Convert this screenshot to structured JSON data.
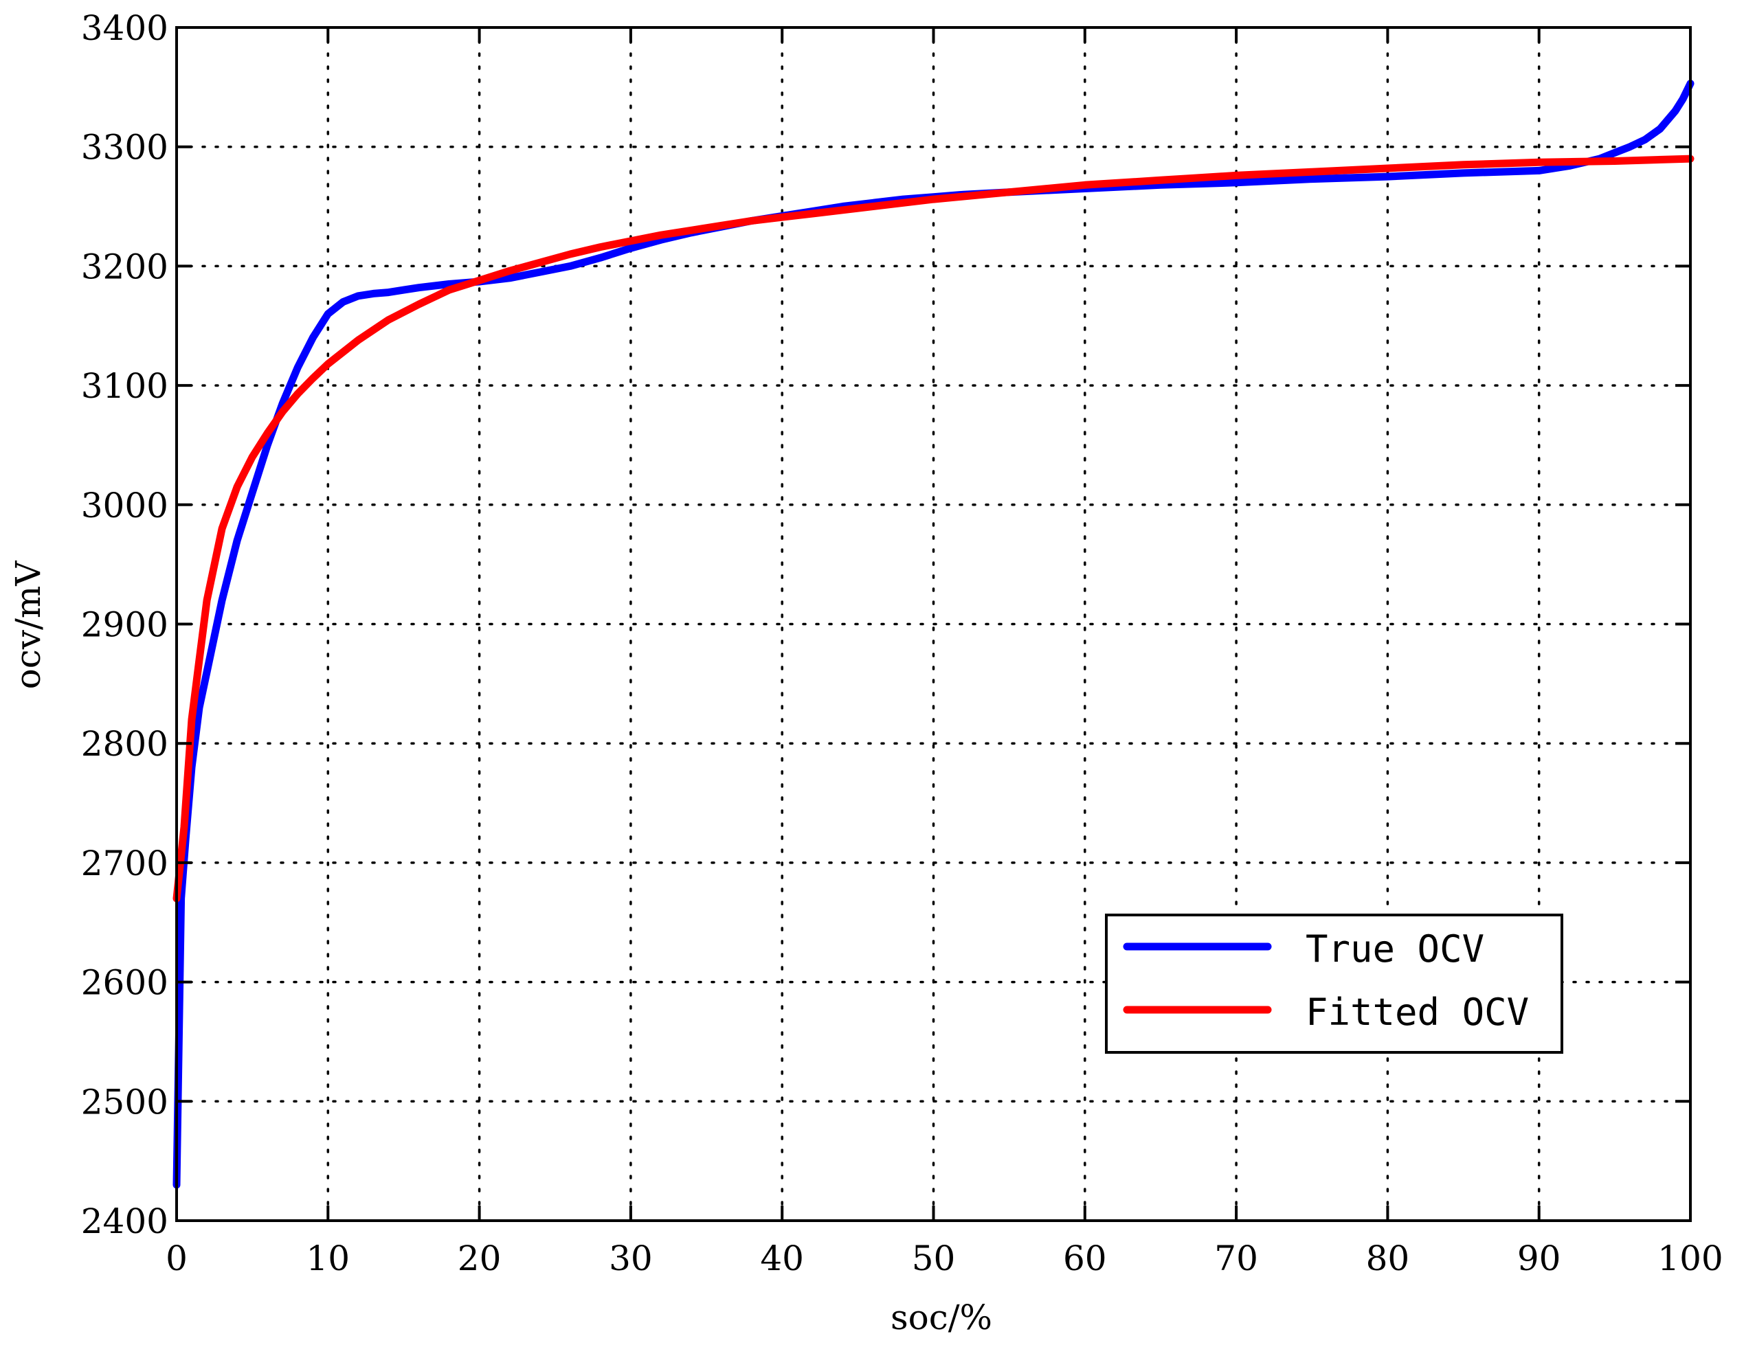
{
  "chart_data": {
    "type": "line",
    "title": "",
    "xlabel": "soc/%",
    "ylabel": "ocv/mV",
    "xlim": [
      0,
      100
    ],
    "ylim": [
      2400,
      3400
    ],
    "xticks": [
      0,
      10,
      20,
      30,
      40,
      50,
      60,
      70,
      80,
      90,
      100
    ],
    "yticks": [
      2400,
      2500,
      2600,
      2700,
      2800,
      2900,
      3000,
      3100,
      3200,
      3300,
      3400
    ],
    "grid": true,
    "legend_position": "lower-right",
    "series": [
      {
        "name": "True OCV",
        "color": "#0000ff",
        "x": [
          0,
          0.3,
          0.6,
          1,
          1.5,
          2,
          3,
          4,
          5,
          6,
          7,
          8,
          9,
          10,
          11,
          12,
          13,
          14,
          15,
          16,
          18,
          20,
          22,
          24,
          26,
          28,
          30,
          32,
          34,
          36,
          38,
          40,
          42,
          44,
          46,
          48,
          50,
          52,
          55,
          60,
          65,
          70,
          75,
          80,
          85,
          90,
          92,
          94,
          95,
          96,
          97,
          98,
          99,
          99.5,
          100
        ],
        "y": [
          2430,
          2670,
          2720,
          2780,
          2830,
          2860,
          2920,
          2970,
          3010,
          3050,
          3085,
          3115,
          3140,
          3160,
          3170,
          3175,
          3177,
          3178,
          3180,
          3182,
          3185,
          3187,
          3190,
          3195,
          3200,
          3207,
          3215,
          3222,
          3228,
          3233,
          3238,
          3242,
          3246,
          3250,
          3253,
          3256,
          3258,
          3260,
          3262,
          3265,
          3268,
          3270,
          3273,
          3275,
          3278,
          3280,
          3284,
          3290,
          3295,
          3300,
          3306,
          3315,
          3330,
          3340,
          3353
        ]
      },
      {
        "name": "Fitted OCV",
        "color": "#ff0000",
        "x": [
          0,
          0.5,
          1,
          1.5,
          2,
          3,
          4,
          5,
          6,
          7,
          8,
          9,
          10,
          12,
          14,
          16,
          18,
          20,
          22,
          24,
          26,
          28,
          30,
          32,
          34,
          36,
          38,
          40,
          42,
          44,
          46,
          48,
          50,
          55,
          60,
          65,
          70,
          75,
          80,
          85,
          90,
          95,
          100
        ],
        "y": [
          2670,
          2730,
          2820,
          2870,
          2920,
          2980,
          3015,
          3040,
          3060,
          3078,
          3093,
          3106,
          3118,
          3138,
          3155,
          3168,
          3180,
          3188,
          3196,
          3203,
          3210,
          3216,
          3221,
          3226,
          3230,
          3234,
          3238,
          3241,
          3244,
          3247,
          3250,
          3253,
          3256,
          3262,
          3268,
          3272,
          3276,
          3279,
          3282,
          3285,
          3287,
          3288,
          3290
        ]
      }
    ]
  }
}
